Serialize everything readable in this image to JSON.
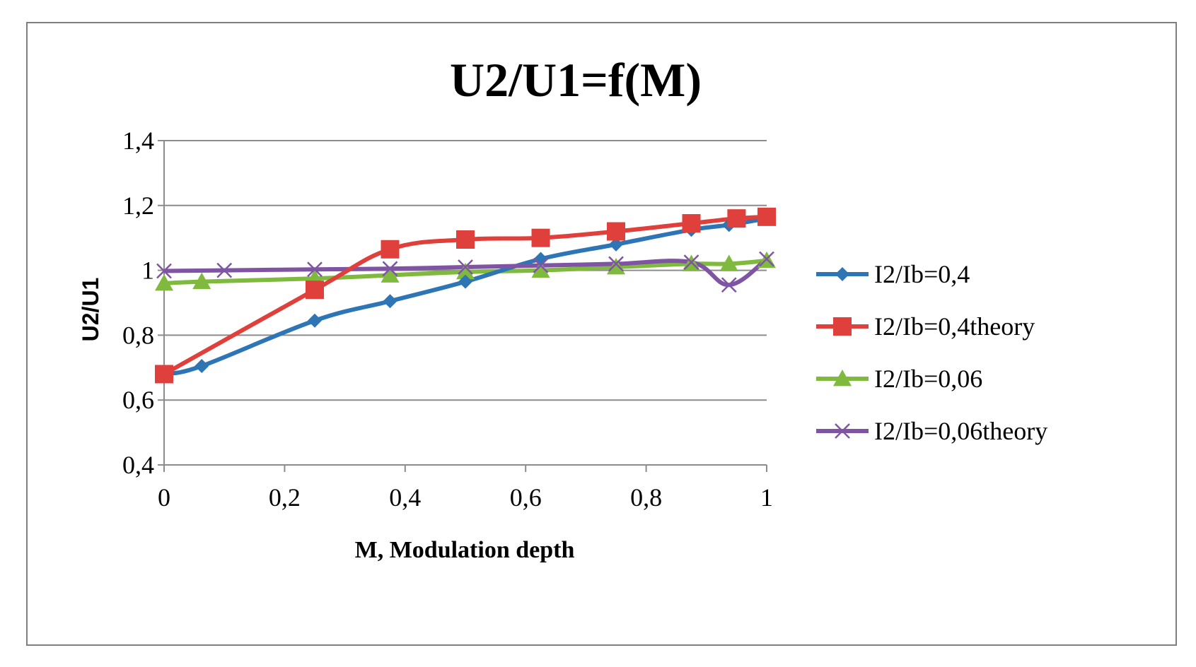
{
  "chart_data": {
    "type": "line",
    "title": "U2/U1=f(M)",
    "xlabel": "M, Modulation depth",
    "ylabel": "U2/U1",
    "xlim": [
      0,
      1
    ],
    "ylim": [
      0.4,
      1.4
    ],
    "x_ticks": [
      0,
      0.2,
      0.4,
      0.6,
      0.8,
      1
    ],
    "x_tick_labels": [
      "0",
      "0,2",
      "0,4",
      "0,6",
      "0,8",
      "1"
    ],
    "y_ticks": [
      0.4,
      0.6,
      0.8,
      1.0,
      1.2,
      1.4
    ],
    "y_tick_labels": [
      "0,4",
      "0,6",
      "0,8",
      "1",
      "1,2",
      "1,4"
    ],
    "grid": "horizontal",
    "legend_position": "right",
    "series": [
      {
        "name": "I2/Ib=0,4",
        "color": "#2e75b6",
        "marker": "diamond",
        "x": [
          0,
          0.0625,
          0.25,
          0.375,
          0.5,
          0.625,
          0.75,
          0.875,
          0.9375,
          1
        ],
        "y": [
          0.68,
          0.705,
          0.845,
          0.905,
          0.965,
          1.035,
          1.08,
          1.125,
          1.14,
          1.16
        ]
      },
      {
        "name": "I2/Ib=0,4theory",
        "color": "#e0403c",
        "marker": "square",
        "x": [
          0,
          0.25,
          0.375,
          0.5,
          0.625,
          0.75,
          0.875,
          0.95,
          1
        ],
        "y": [
          0.68,
          0.94,
          1.065,
          1.095,
          1.1,
          1.12,
          1.145,
          1.16,
          1.165
        ]
      },
      {
        "name": "I2/Ib=0,06",
        "color": "#7fba3f",
        "marker": "triangle",
        "x": [
          0,
          0.0625,
          0.25,
          0.375,
          0.5,
          0.625,
          0.75,
          0.875,
          0.9375,
          1
        ],
        "y": [
          0.96,
          0.965,
          0.975,
          0.985,
          0.995,
          1.0,
          1.01,
          1.02,
          1.02,
          1.03
        ]
      },
      {
        "name": "I2/Ib=0,06theory",
        "color": "#7f55a3",
        "marker": "x",
        "x": [
          0,
          0.1,
          0.25,
          0.375,
          0.5,
          0.625,
          0.75,
          0.875,
          0.9375,
          1
        ],
        "y": [
          0.998,
          1.0,
          1.003,
          1.005,
          1.01,
          1.015,
          1.02,
          1.025,
          0.955,
          1.035
        ]
      }
    ]
  }
}
